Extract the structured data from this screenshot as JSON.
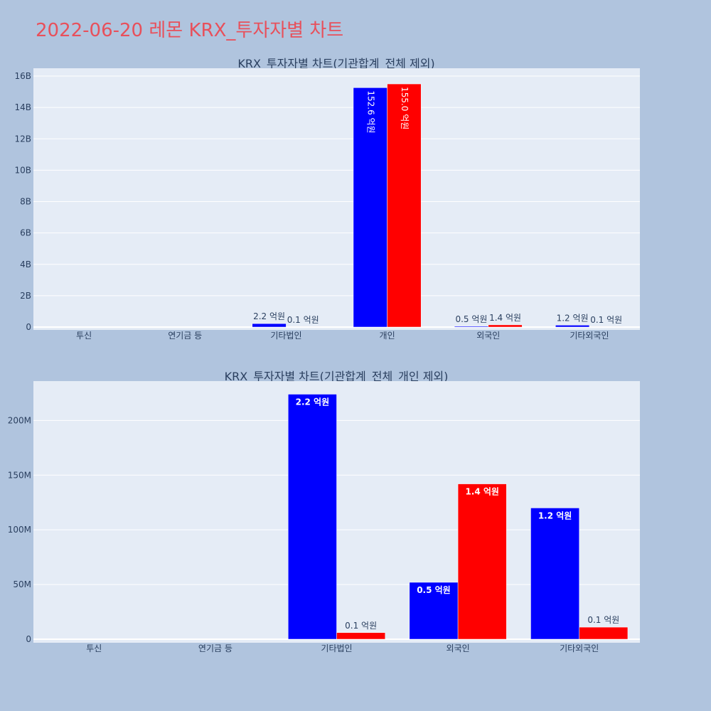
{
  "page": {
    "title": "2022-06-20 레몬 KRX_투자자별 차트"
  },
  "colors": {
    "background": "#b0c4de",
    "plot_bg": "#e5ecf6",
    "buy": "#0000ff",
    "sell": "#ff0000",
    "title": "#e8505b",
    "axis_text": "#2a3f5f"
  },
  "chart_data": [
    {
      "type": "bar",
      "title": "KRX_투자자별 차트(기관합계_전체 제외)",
      "categories": [
        "투신",
        "연기금 등",
        "기타법인",
        "개인",
        "외국인",
        "기타외국인"
      ],
      "series": [
        {
          "color": "#0000ff",
          "values": [
            0,
            0,
            220000000,
            15260000000,
            50000000,
            120000000
          ],
          "labels": [
            "",
            "",
            "2.2 억원",
            "152.6 억원",
            "0.5 억원",
            "1.2 억원"
          ]
        },
        {
          "color": "#ff0000",
          "values": [
            0,
            0,
            10000000,
            15500000000,
            140000000,
            10000000
          ],
          "labels": [
            "",
            "",
            "0.1 억원",
            "155.0 억원",
            "1.4 억원",
            "0.1 억원"
          ]
        }
      ],
      "ylim": [
        0,
        16500000000
      ],
      "yticks": [
        0,
        2000000000,
        4000000000,
        6000000000,
        8000000000,
        10000000000,
        12000000000,
        14000000000,
        16000000000
      ],
      "yticklabels": [
        "0",
        "2B",
        "4B",
        "6B",
        "8B",
        "10B",
        "12B",
        "14B",
        "16B"
      ],
      "xlabel": "",
      "ylabel": "",
      "grid": true
    },
    {
      "type": "bar",
      "title": "KRX_투자자별 차트(기관합계_전체_개인 제외)",
      "categories": [
        "투신",
        "연기금 등",
        "기타법인",
        "외국인",
        "기타외국인"
      ],
      "series": [
        {
          "color": "#0000ff",
          "values": [
            0,
            0,
            224000000,
            52000000,
            120000000
          ],
          "labels": [
            "",
            "",
            "2.2 억원",
            "0.5 억원",
            "1.2 억원"
          ]
        },
        {
          "color": "#ff0000",
          "values": [
            0,
            0,
            6000000,
            142000000,
            11000000
          ],
          "labels": [
            "",
            "",
            "0.1 억원",
            "1.4 억원",
            "0.1 억원"
          ]
        }
      ],
      "ylim": [
        0,
        236000000
      ],
      "yticks": [
        0,
        50000000,
        100000000,
        150000000,
        200000000
      ],
      "yticklabels": [
        "0",
        "50M",
        "100M",
        "150M",
        "200M"
      ],
      "xlabel": "",
      "ylabel": "",
      "grid": true
    }
  ]
}
